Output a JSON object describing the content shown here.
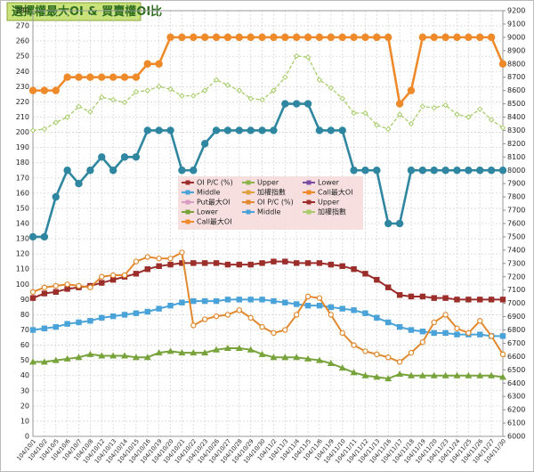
{
  "chart_data": {
    "type": "line",
    "title": "選擇權最大OI & 買賣權OI比",
    "categories": [
      "104/10/1",
      "104/10/2",
      "104/10/5",
      "104/10/6",
      "104/10/7",
      "104/10/8",
      "104/10/12",
      "104/10/13",
      "104/10/14",
      "104/10/15",
      "104/10/16",
      "104/10/19",
      "104/10/20",
      "104/10/21",
      "104/10/22",
      "104/10/23",
      "104/10/26",
      "104/10/27",
      "104/10/28",
      "104/10/29",
      "104/10/30",
      "104/11/2",
      "104/11/3",
      "104/11/4",
      "104/11/5",
      "104/11/6",
      "104/11/9",
      "104/11/10",
      "104/11/11",
      "104/11/12",
      "104/11/13",
      "104/11/16",
      "104/11/17",
      "104/11/18",
      "104/11/19",
      "104/11/20",
      "104/11/23",
      "104/11/24",
      "104/11/25",
      "104/11/26",
      "104/11/27",
      "104/11/30"
    ],
    "series": [
      {
        "name": "Upper",
        "color": "#9b2d2a",
        "marker": "square",
        "axis": "y",
        "values": [
          91,
          94,
          95,
          97,
          98,
          99,
          101,
          103,
          105,
          107,
          110,
          112,
          113,
          114,
          114,
          114,
          114,
          113,
          113,
          113,
          114,
          115,
          115,
          114,
          114,
          114,
          113,
          112,
          110,
          107,
          103,
          98,
          93,
          92,
          92,
          91,
          91,
          90,
          90,
          90,
          90,
          90
        ]
      },
      {
        "name": "Middle",
        "color": "#4aa3d8",
        "marker": "square",
        "axis": "y",
        "values": [
          70,
          71,
          72,
          74,
          75,
          76,
          78,
          79,
          80,
          81,
          82,
          84,
          86,
          88,
          89,
          89,
          89,
          90,
          90,
          90,
          90,
          89,
          88,
          87,
          86,
          86,
          85,
          84,
          83,
          81,
          78,
          75,
          72,
          70,
          69,
          68,
          68,
          67,
          67,
          67,
          66,
          66
        ]
      },
      {
        "name": "Lower",
        "color": "#77a33a",
        "marker": "triangle",
        "axis": "y",
        "values": [
          49,
          49,
          50,
          51,
          52,
          54,
          53,
          53,
          53,
          52,
          52,
          55,
          56,
          55,
          55,
          55,
          57,
          58,
          58,
          57,
          54,
          52,
          52,
          52,
          51,
          50,
          48,
          45,
          42,
          40,
          39,
          38,
          41,
          40,
          40,
          40,
          40,
          40,
          40,
          40,
          40,
          39
        ]
      },
      {
        "name": "OI P/C (%)",
        "color": "#e0892e",
        "marker": "open-circle",
        "axis": "y",
        "values": [
          95,
          98,
          99,
          100,
          99,
          98,
          105,
          106,
          106,
          115,
          118,
          117,
          117,
          121,
          73,
          77,
          79,
          80,
          83,
          78,
          72,
          68,
          70,
          80,
          92,
          91,
          80,
          68,
          60,
          56,
          54,
          52,
          49,
          55,
          62,
          75,
          80,
          71,
          68,
          76,
          66,
          54
        ]
      },
      {
        "name": "加權指數",
        "color": "#a8cc6a",
        "marker": "diamond",
        "dash": true,
        "axis": "y2",
        "values": [
          8300,
          8310,
          8360,
          8400,
          8480,
          8440,
          8550,
          8530,
          8510,
          8590,
          8600,
          8630,
          8610,
          8560,
          8560,
          8600,
          8680,
          8640,
          8600,
          8540,
          8530,
          8600,
          8700,
          8860,
          8850,
          8680,
          8620,
          8540,
          8430,
          8430,
          8340,
          8310,
          8420,
          8350,
          8480,
          8470,
          8490,
          8420,
          8400,
          8460,
          8380,
          8320
        ]
      },
      {
        "name": "Put最大OI",
        "color": "#2e86a0",
        "marker": "circle",
        "axis": "y2",
        "values": [
          7500,
          7500,
          7800,
          8000,
          7900,
          8000,
          8100,
          8000,
          8100,
          8100,
          8300,
          8300,
          8300,
          8000,
          8000,
          8200,
          8300,
          8300,
          8300,
          8300,
          8300,
          8300,
          8500,
          8500,
          8500,
          8300,
          8300,
          8300,
          8000,
          8000,
          8000,
          7600,
          7600,
          8000,
          8000,
          8000,
          8000,
          8000,
          8000,
          8000,
          8000,
          8000
        ]
      },
      {
        "name": "Call最大OI",
        "color": "#ee8a2a",
        "marker": "circle",
        "axis": "y2",
        "values": [
          8600,
          8600,
          8600,
          8700,
          8700,
          8700,
          8700,
          8700,
          8700,
          8700,
          8800,
          8800,
          9000,
          9000,
          9000,
          9000,
          9000,
          9000,
          9000,
          9000,
          9000,
          9000,
          9000,
          9000,
          9000,
          9000,
          9000,
          9000,
          9000,
          9000,
          9000,
          9000,
          8500,
          8600,
          9000,
          9000,
          9000,
          9000,
          9000,
          9000,
          9000,
          8800
        ]
      }
    ],
    "legend": [
      {
        "name": "OI P/C (%)",
        "color": "#9b2d2a"
      },
      {
        "name": "Middle",
        "color": "#4aa3d8"
      },
      {
        "name": "Put最大OI",
        "color": "#d79ac0"
      },
      {
        "name": "Lower",
        "color": "#77a33a"
      },
      {
        "name": "Call最大OI",
        "color": "#ee8a2a"
      },
      {
        "name": "Upper",
        "color": "#8fb34c"
      },
      {
        "name": "加權指數",
        "color": "#e0a040"
      },
      {
        "name": "OI P/C (%)",
        "color": "#e0892e"
      },
      {
        "name": "Middle",
        "color": "#4aa3d8"
      },
      {
        "name": "Lower",
        "color": "#7a4ea3"
      },
      {
        "name": "Call最大OI",
        "color": "#ee8a2a"
      },
      {
        "name": "Upper",
        "color": "#9b2d2a"
      },
      {
        "name": "加權指數",
        "color": "#a8cc6a"
      }
    ],
    "ylim": [
      0,
      280
    ],
    "yticks": [
      0,
      10,
      20,
      30,
      40,
      50,
      60,
      70,
      80,
      90,
      100,
      110,
      120,
      130,
      140,
      150,
      160,
      170,
      180,
      190,
      200,
      210,
      220,
      230,
      240,
      250,
      260,
      270,
      280
    ],
    "y2lim": [
      6000,
      9200
    ],
    "y2ticks": [
      6000,
      6100,
      6200,
      6300,
      6400,
      6500,
      6600,
      6700,
      6800,
      6900,
      7000,
      7100,
      7200,
      7300,
      7400,
      7500,
      7600,
      7700,
      7800,
      7900,
      8000,
      8100,
      8200,
      8300,
      8400,
      8500,
      8600,
      8700,
      8800,
      8900,
      9000,
      9100,
      9200
    ],
    "grid": true
  }
}
